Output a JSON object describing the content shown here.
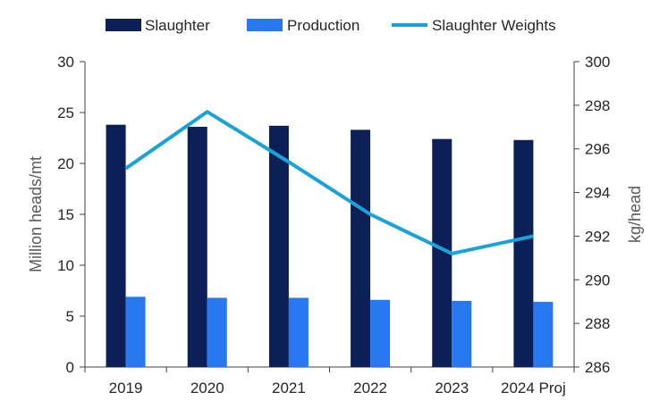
{
  "chart_data": {
    "type": "bar",
    "categories": [
      "2019",
      "2020",
      "2021",
      "2022",
      "2023",
      "2024 Proj"
    ],
    "series": [
      {
        "name": "Slaughter",
        "type": "bar",
        "axis": "left",
        "color": "#0c1f56",
        "values": [
          23.8,
          23.6,
          23.7,
          23.3,
          22.4,
          22.3
        ]
      },
      {
        "name": "Production",
        "type": "bar",
        "axis": "left",
        "color": "#2878f0",
        "values": [
          6.9,
          6.8,
          6.8,
          6.6,
          6.5,
          6.4
        ]
      },
      {
        "name": "Slaughter Weights",
        "type": "line",
        "axis": "right",
        "color": "#1aa3d9",
        "values": [
          295.1,
          297.7,
          295.4,
          293.0,
          291.2,
          292.0
        ]
      }
    ],
    "y_left": {
      "label": "Million heads/mt",
      "min": 0,
      "max": 30,
      "ticks": [
        0,
        5,
        10,
        15,
        20,
        25,
        30
      ]
    },
    "y_right": {
      "label": "kg/head",
      "min": 286,
      "max": 300,
      "ticks": [
        286,
        288,
        290,
        292,
        294,
        296,
        298,
        300
      ]
    },
    "legend_position": "top",
    "grid": false
  }
}
